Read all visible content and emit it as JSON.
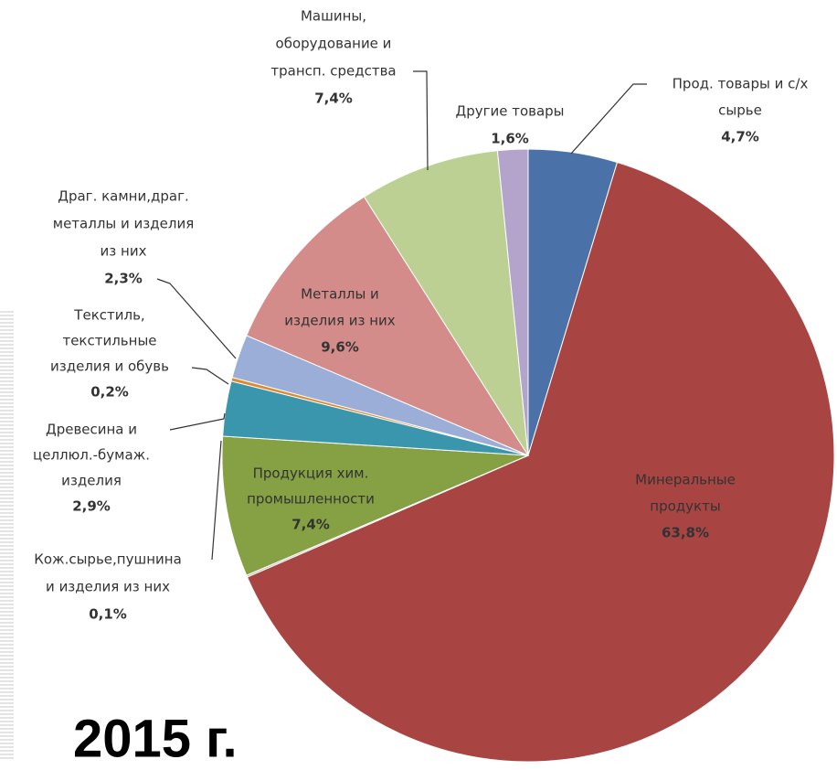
{
  "chart_data": {
    "type": "pie",
    "title": "2015 г.",
    "labels": [
      [
        "Прод. товары и с/х",
        "сырье"
      ],
      [
        "Минеральные",
        "продукты"
      ],
      [
        "Кож.сырье,пушнина",
        "и изделия из них"
      ],
      [
        "Продукция хим.",
        "промышленности"
      ],
      [
        "Древесина и",
        "целлюл.-бумаж.",
        "изделия"
      ],
      [
        "Текстиль,",
        "текстильные",
        "изделия и обувь"
      ],
      [
        "Драг. камни,драг.",
        "металлы и изделия",
        "из них"
      ],
      [
        "Металлы и",
        "изделия из них"
      ],
      [
        "Машины,",
        "оборудование и",
        "трансп. средства"
      ],
      [
        "Другие товары"
      ]
    ],
    "values": [
      4.7,
      63.8,
      0.1,
      7.4,
      2.9,
      0.2,
      2.3,
      9.6,
      7.4,
      1.6
    ],
    "value_labels": [
      "4,7%",
      "63,8%",
      "0,1%",
      "7,4%",
      "2,9%",
      "0,2%",
      "2,3%",
      "9,6%",
      "7,4%",
      "1,6%"
    ],
    "colors": [
      "#4a72a8",
      "#a84442",
      "#c8c0b0",
      "#86a044",
      "#3a96ad",
      "#e08a30",
      "#9aaed8",
      "#d38c8a",
      "#bcd093",
      "#b4a4cc"
    ]
  }
}
